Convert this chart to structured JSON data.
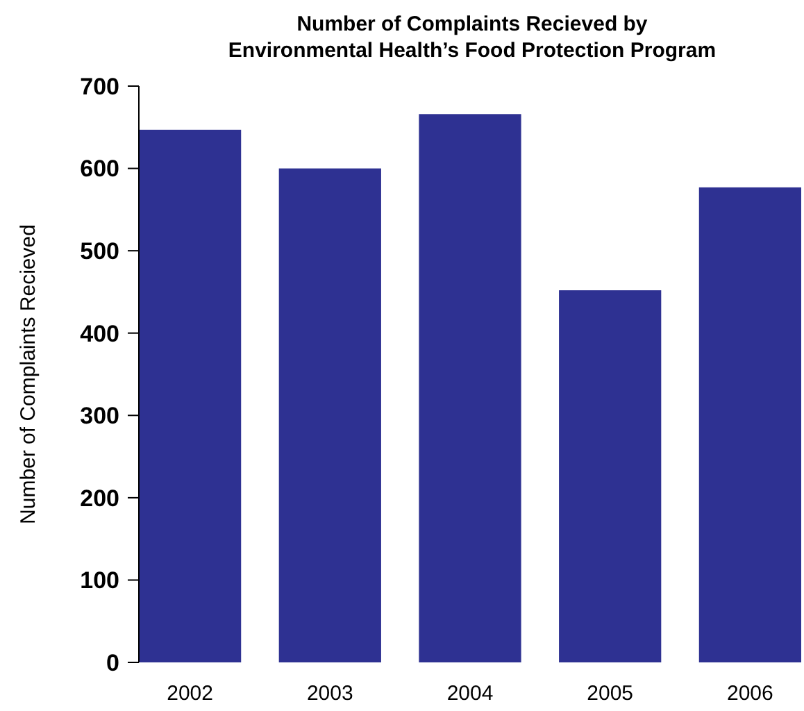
{
  "chart_data": {
    "type": "bar",
    "title": "Number of Complaints Recieved by\nEnvironmental Health’s Food Protection Program",
    "ylabel": "Number of Complaints Recieved",
    "categories": [
      "2002",
      "2003",
      "2004",
      "2005",
      "2006"
    ],
    "values": [
      647,
      600,
      666,
      452,
      577
    ],
    "color": "#2e3192",
    "ylim": [
      0,
      700
    ],
    "yticks": [
      0,
      100,
      200,
      300,
      400,
      500,
      600,
      700
    ],
    "grid": false
  }
}
